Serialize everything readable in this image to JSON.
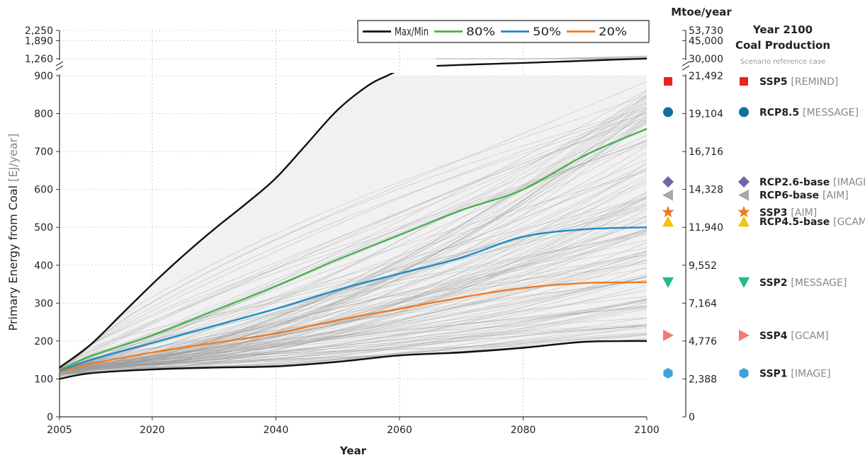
{
  "chart_data": {
    "type": "line",
    "xlabel": "Year",
    "ylabel": "Primary Energy from Coal",
    "ylabel_unit": "[EJ/year]",
    "right_axis_label": "Mtoe/year",
    "xlim": [
      2005,
      2100
    ],
    "ylim_lower": [
      0,
      900
    ],
    "ylim_upper": [
      1260,
      2250
    ],
    "x_ticks": [
      2005,
      2020,
      2040,
      2060,
      2080,
      2100
    ],
    "y_ticks_lower": [
      0,
      100,
      200,
      300,
      400,
      500,
      600,
      700,
      800,
      900
    ],
    "y_ticks_upper": [
      1260,
      1890,
      2250
    ],
    "y_tick_labels_upper": [
      "1,260",
      "1,890",
      "2,250"
    ],
    "right_ticks_lower": [
      {
        "ej": 0,
        "label": "0"
      },
      {
        "ej": 100,
        "label": "2,388"
      },
      {
        "ej": 200,
        "label": "4,776"
      },
      {
        "ej": 300,
        "label": "7,164"
      },
      {
        "ej": 400,
        "label": "9,552"
      },
      {
        "ej": 500,
        "label": "11,940"
      },
      {
        "ej": 600,
        "label": "14,328"
      },
      {
        "ej": 700,
        "label": "16,716"
      },
      {
        "ej": 800,
        "label": "19,104"
      },
      {
        "ej": 900,
        "label": "21,492"
      }
    ],
    "right_ticks_upper": [
      {
        "ej": 1260,
        "label": "30,000"
      },
      {
        "ej": 1890,
        "label": "45,000"
      },
      {
        "ej": 2250,
        "label": "53,730"
      }
    ],
    "grid": true,
    "legend_position": "top",
    "series": [
      {
        "name": "Max/Min",
        "color": "#111111",
        "x": [
          2005,
          2010,
          2015,
          2020,
          2025,
          2030,
          2035,
          2040,
          2045,
          2050,
          2055,
          2058,
          2060,
          2062
        ],
        "y": [
          130,
          190,
          270,
          350,
          425,
          495,
          560,
          630,
          720,
          810,
          875,
          900,
          915,
          925
        ],
        "x_upper": [
          2066,
          2070,
          2075,
          2080,
          2085,
          2090,
          2095,
          2100
        ],
        "y_upper": [
          1010,
          1045,
          1080,
          1115,
          1150,
          1190,
          1230,
          1265
        ]
      },
      {
        "name": "",
        "color": "#111111",
        "x": [
          2005,
          2010,
          2020,
          2030,
          2040,
          2050,
          2060,
          2070,
          2080,
          2090,
          2100
        ],
        "y": [
          100,
          115,
          125,
          130,
          133,
          145,
          162,
          170,
          182,
          198,
          200
        ]
      },
      {
        "name": "80%",
        "color": "#4caf50",
        "x": [
          2005,
          2010,
          2020,
          2030,
          2040,
          2050,
          2060,
          2070,
          2080,
          2090,
          2100
        ],
        "y": [
          122,
          160,
          215,
          280,
          345,
          415,
          480,
          545,
          600,
          690,
          760
        ]
      },
      {
        "name": "50%",
        "color": "#1f8bc4",
        "x": [
          2005,
          2010,
          2020,
          2030,
          2040,
          2050,
          2060,
          2070,
          2080,
          2090,
          2100
        ],
        "y": [
          120,
          150,
          195,
          240,
          285,
          335,
          378,
          420,
          475,
          495,
          500
        ]
      },
      {
        "name": "20%",
        "color": "#ef7a22",
        "x": [
          2005,
          2010,
          2020,
          2030,
          2040,
          2050,
          2060,
          2070,
          2080,
          2090,
          2100
        ],
        "y": [
          118,
          140,
          170,
          195,
          220,
          255,
          285,
          315,
          340,
          353,
          355
        ]
      }
    ],
    "scenarios_title": "Year 2100",
    "scenarios_subtitle": "Coal Production",
    "scenarios_note": "Scenario reference case",
    "scenarios": [
      {
        "name": "SSP5",
        "model": "[REMIND]",
        "value": 885,
        "marker": "square",
        "color": "#e8231f"
      },
      {
        "name": "RCP8.5",
        "model": "[MESSAGE]",
        "value": 804,
        "marker": "circle",
        "color": "#0f6fa0"
      },
      {
        "name": "RCP2.6-base",
        "model": "[IMAGE]",
        "value": 620,
        "marker": "diamond",
        "color": "#6a6aaa"
      },
      {
        "name": "RCP6-base",
        "model": "[AIM]",
        "value": 585,
        "marker": "triangle-left",
        "color": "#a8a8a8"
      },
      {
        "name": "SSP3",
        "model": "[AIM]",
        "value": 540,
        "marker": "star",
        "color": "#ea7b25"
      },
      {
        "name": "RCP4.5-base",
        "model": "[GCAM]",
        "value": 515,
        "marker": "triangle-up",
        "color": "#f4c20d"
      },
      {
        "name": "SSP2",
        "model": "[MESSAGE]",
        "value": 355,
        "marker": "triangle-down",
        "color": "#1fbf7f"
      },
      {
        "name": "SSP4",
        "model": "[GCAM]",
        "value": 215,
        "marker": "triangle-right",
        "color": "#f07a7a"
      },
      {
        "name": "SSP1",
        "model": "[IMAGE]",
        "value": 115,
        "marker": "hexagon",
        "color": "#3aa3d8"
      }
    ]
  }
}
